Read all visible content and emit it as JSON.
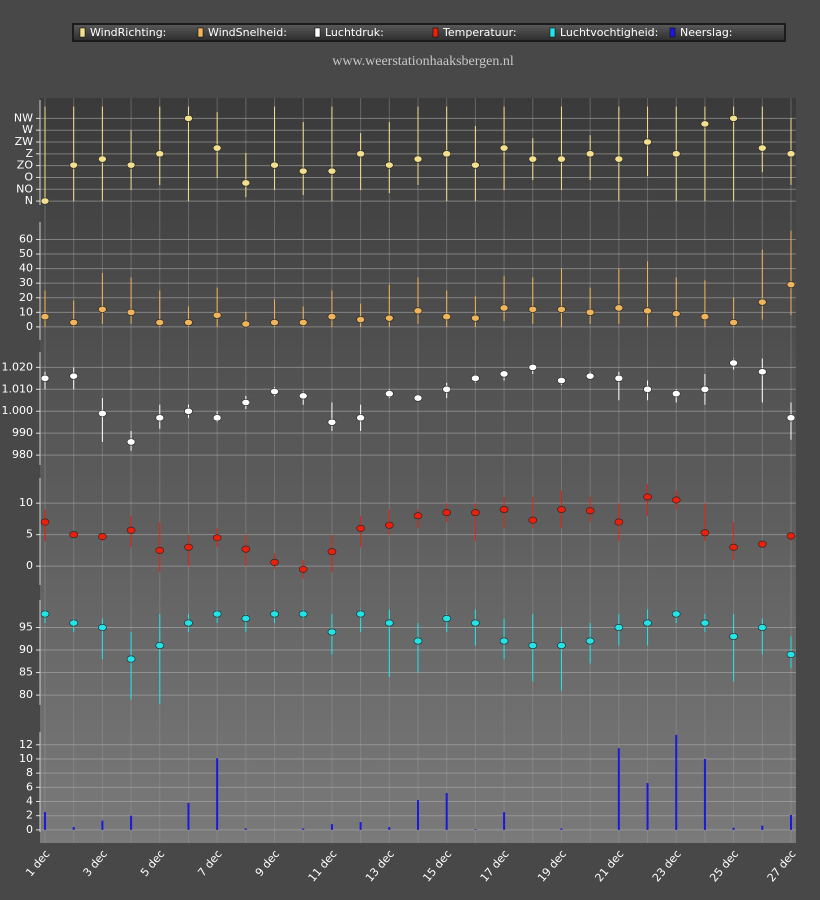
{
  "chart_data": {
    "type": "panels",
    "title": "www.weerstationhaaksbergen.nl",
    "categories": [
      "1 dec",
      null,
      "3 dec",
      null,
      "5 dec",
      null,
      "7 dec",
      null,
      "9 dec",
      null,
      "11 dec",
      null,
      "13 dec",
      null,
      "15 dec",
      null,
      "17 dec",
      null,
      "19 dec",
      null,
      "21 dec",
      null,
      "23 dec",
      null,
      "25 dec",
      null,
      "27 dec"
    ],
    "grid": true,
    "panels": [
      {
        "type": "range-dot",
        "ylim": [
          -15,
          385
        ],
        "yticks": [
          {
            "value": 0,
            "label": "N"
          },
          {
            "value": 45,
            "label": "NO"
          },
          {
            "value": 90,
            "label": "O"
          },
          {
            "value": 135,
            "label": "ZO"
          },
          {
            "value": 180,
            "label": "Z"
          },
          {
            "value": 225,
            "label": "ZW"
          },
          {
            "value": 270,
            "label": "W"
          },
          {
            "value": 315,
            "label": "NW"
          }
        ],
        "series": [
          {
            "name": "WindRichting:",
            "color": "#f3e08e",
            "values": [
              0,
              137,
              160,
              137,
              180,
              315,
              202,
              69,
              137,
              114,
              114,
              180,
              137,
              160,
              180,
              137,
              202,
              160,
              160,
              180,
              160,
              225,
              180,
              294,
              315,
              202,
              180
            ],
            "low": [
              0,
              0,
              0,
              42,
              61,
              0,
              88,
              15,
              42,
              23,
              0,
              42,
              30,
              61,
              0,
              0,
              42,
              80,
              42,
              80,
              0,
              95,
              0,
              0,
              0,
              110,
              61
            ],
            "high": [
              360,
              360,
              360,
              270,
              360,
              360,
              339,
              183,
              360,
              301,
              360,
              259,
              301,
              360,
              360,
              286,
              360,
              240,
              360,
              251,
              360,
              360,
              360,
              360,
              360,
              360,
              316
            ]
          }
        ]
      },
      {
        "type": "range-dot",
        "ylim": [
          -9,
          72
        ],
        "yticks": [
          0,
          10,
          20,
          30,
          40,
          50,
          60
        ],
        "series": [
          {
            "name": "WindSnelheid:",
            "color": "#f0b45a",
            "values": [
              7,
              3,
              12,
              10,
              3,
              3,
              8,
              2,
              3,
              3,
              7,
              5,
              6,
              11,
              7,
              6,
              13,
              12,
              12,
              10,
              13,
              11,
              9,
              7,
              3,
              17,
              29
            ],
            "low": [
              0,
              0,
              2,
              2,
              0,
              0,
              0,
              0,
              0,
              0,
              0,
              0,
              0,
              2,
              0,
              0,
              4,
              2,
              0,
              2,
              2,
              0,
              0,
              0,
              0,
              5,
              8
            ],
            "high": [
              25,
              18,
              37,
              34,
              25,
              14,
              27,
              10,
              19,
              14,
              25,
              16,
              29,
              34,
              25,
              21,
              35,
              34,
              40,
              27,
              40,
              45,
              34,
              32,
              20,
              53,
              66
            ]
          }
        ]
      },
      {
        "type": "range-dot",
        "ylim": [
          975.5,
          1027
        ],
        "yticks": [
          980,
          990,
          {
            "value": 1000,
            "label": "1.000"
          },
          {
            "value": 1010,
            "label": "1.010"
          },
          {
            "value": 1020,
            "label": "1.020"
          }
        ],
        "series": [
          {
            "name": "Luchtdruk:",
            "color": "#ffffff",
            "values": [
              1015,
              1016,
              999,
              986,
              997,
              1000,
              997,
              1004,
              1009,
              1007,
              995,
              997,
              1008,
              1006,
              1010,
              1015,
              1017,
              1020,
              1014,
              1016,
              1015,
              1010,
              1008,
              1010,
              1022,
              1018,
              997
            ],
            "low": [
              1010,
              1010,
              986,
              982,
              992,
              997,
              995,
              1001,
              1007,
              1003,
              991,
              991,
              1006,
              1005,
              1006,
              1013,
              1014,
              1017,
              1012,
              1015,
              1005,
              1005,
              1004,
              1003,
              1019,
              1004,
              987
            ],
            "high": [
              1018,
              1020,
              1006,
              991,
              1003,
              1003,
              1000,
              1007,
              1011,
              1009,
              1004,
              1003,
              1010,
              1007,
              1013,
              1016,
              1018,
              1021,
              1015,
              1018,
              1018,
              1014,
              1010,
              1017,
              1024,
              1024,
              1004
            ]
          }
        ]
      },
      {
        "type": "range-dot",
        "ylim": [
          -3,
          14
        ],
        "yticks": [
          0,
          5,
          10
        ],
        "series": [
          {
            "name": "Temperatuur:",
            "color": "#e8200c",
            "values": [
              7,
              5,
              4.7,
              5.7,
              2.5,
              3,
              4.5,
              2.7,
              0.6,
              -0.5,
              2.3,
              6,
              6.5,
              8,
              8.5,
              8.5,
              9,
              7.3,
              9,
              8.8,
              7,
              11,
              10.5,
              5.3,
              3,
              3.5,
              4.8
            ],
            "low": [
              4,
              4.5,
              4,
              3,
              -1,
              0,
              3,
              0,
              -0.5,
              -2,
              -1,
              3,
              5,
              6,
              7,
              4,
              6,
              6,
              6,
              7,
              4,
              8,
              9,
              4,
              1,
              3,
              4
            ],
            "high": [
              9,
              5.5,
              5,
              8,
              7,
              5,
              6,
              5,
              2,
              1,
              5,
              8,
              9,
              9,
              10,
              10,
              11,
              11,
              12,
              11,
              10,
              13,
              12,
              10,
              7,
              4,
              5
            ]
          }
        ]
      },
      {
        "type": "range-dot",
        "ylim": [
          77.8,
          101.1
        ],
        "yticks": [
          80,
          85,
          90,
          95
        ],
        "series": [
          {
            "name": "Luchtvochtigheid:",
            "color": "#22e4e8",
            "values": [
              98,
              96,
              95,
              88,
              91,
              96,
              98,
              97,
              98,
              98,
              94,
              98,
              96,
              92,
              97,
              96,
              92,
              91,
              91,
              92,
              95,
              96,
              98,
              96,
              93,
              95,
              89
            ],
            "low": [
              96,
              94,
              88,
              79,
              78,
              94,
              96,
              94,
              96,
              97,
              89,
              94,
              84,
              85,
              94,
              91,
              88,
              83,
              81,
              87,
              91,
              91,
              96,
              94,
              83,
              89,
              86
            ],
            "high": [
              99,
              97,
              97,
              94,
              98,
              98,
              99,
              98,
              99,
              99,
              98,
              99,
              99,
              96,
              98,
              99,
              97,
              98,
              95,
              96,
              98,
              99,
              99,
              98,
              98,
              97,
              93
            ]
          }
        ]
      },
      {
        "type": "bar",
        "ylim": [
          -0.3,
          13.8
        ],
        "yticks": [
          0,
          2,
          4,
          6,
          8,
          10,
          12
        ],
        "series": [
          {
            "name": "Neerslag:",
            "color": "#1a1adc",
            "values": [
              2.5,
              0.4,
              1.3,
              2,
              0,
              3.8,
              10.1,
              0.2,
              0,
              0.2,
              0.8,
              1.1,
              0.4,
              4.2,
              5.2,
              0.1,
              2.5,
              0,
              0.2,
              0,
              11.5,
              6.6,
              13.4,
              10,
              0.3,
              0.6,
              2.1
            ]
          }
        ]
      }
    ]
  }
}
